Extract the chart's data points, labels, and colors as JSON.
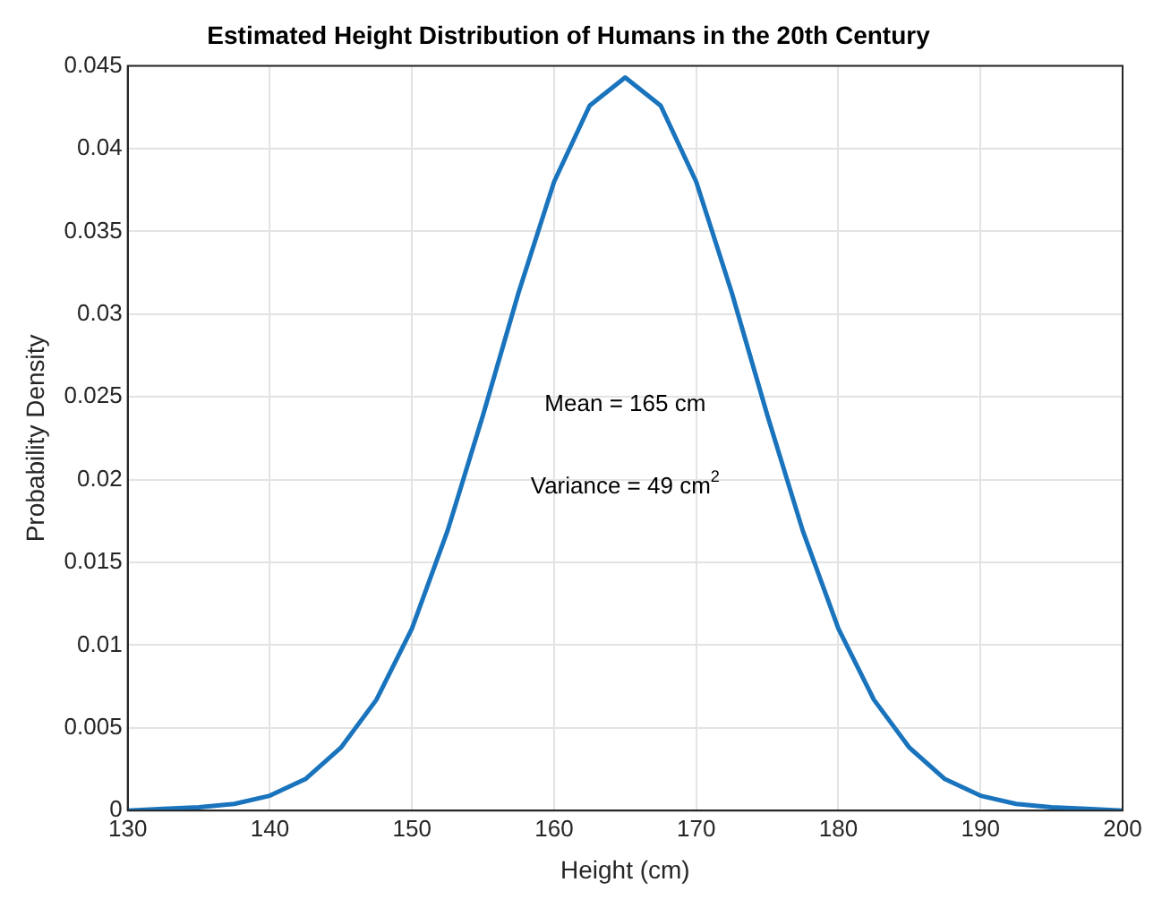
{
  "chart_data": {
    "type": "line",
    "title": "Estimated Height Distribution of Humans in the 20th Century",
    "xlabel": "Height (cm)",
    "ylabel": "Probability Density",
    "annotations": [
      "Mean = 165 cm",
      "Variance = 49 cm$^{2}$"
    ],
    "x": [
      130,
      132.5,
      135,
      137.5,
      140,
      142.5,
      145,
      147.5,
      150,
      152.5,
      155,
      157.5,
      160,
      162.5,
      165,
      167.5,
      170,
      172.5,
      175,
      177.5,
      180,
      182.5,
      185,
      187.5,
      190,
      192.5,
      195,
      197.5,
      200
    ],
    "series": [
      {
        "color": "#1a74bd",
        "values": [
          0,
          0.0001,
          0.0002,
          0.0004,
          0.0009,
          0.0019,
          0.0038,
          0.0067,
          0.011,
          0.0169,
          0.0239,
          0.0313,
          0.038,
          0.0426,
          0.0443,
          0.0426,
          0.038,
          0.0313,
          0.0239,
          0.0169,
          0.011,
          0.0067,
          0.0038,
          0.0019,
          0.0009,
          0.0004,
          0.0002,
          0.0001,
          0
        ]
      }
    ],
    "xlim": [
      130,
      200
    ],
    "xticks": [
      130,
      140,
      150,
      160,
      170,
      180,
      190,
      200
    ],
    "ylim": [
      0,
      0.045
    ],
    "yticks": [
      0,
      0.005,
      0.01,
      0.015,
      0.02,
      0.025,
      0.03,
      0.035,
      0.04,
      0.045
    ],
    "grid": true,
    "legend": false,
    "marker": "none",
    "line_style": "solid"
  }
}
